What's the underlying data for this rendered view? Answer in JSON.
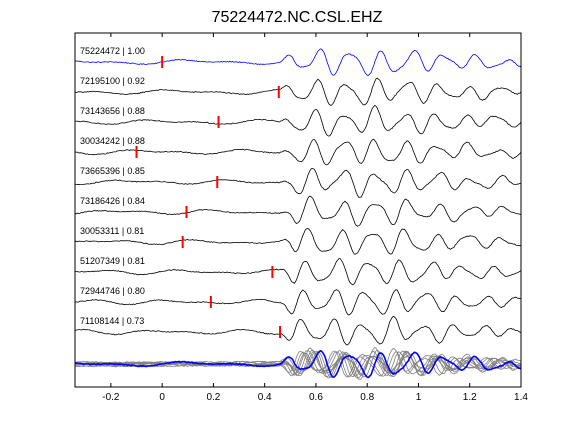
{
  "chart_data": {
    "type": "line",
    "title": "75224472.NC.CSL.EHZ",
    "xlabel": "",
    "ylabel": "",
    "xlim": [
      -0.34,
      1.4
    ],
    "x_ticks": [
      "-0.2",
      "0",
      "0.2",
      "0.4",
      "0.6",
      "0.8",
      "1",
      "1.2",
      "1.4"
    ],
    "x_tick_values": [
      -0.2,
      0,
      0.2,
      0.4,
      0.6,
      0.8,
      1.0,
      1.2,
      1.4
    ],
    "grid": false,
    "series": [
      {
        "name": "75224472 | 1.00",
        "pick_time": 0.0,
        "color": "#0000ff"
      },
      {
        "name": "72195100 | 0.92",
        "pick_time": 0.455,
        "color": "#000000"
      },
      {
        "name": "73143656 | 0.88",
        "pick_time": 0.22,
        "color": "#000000"
      },
      {
        "name": "30034242 | 0.88",
        "pick_time": -0.1,
        "color": "#000000"
      },
      {
        "name": "73665396 | 0.85",
        "pick_time": 0.215,
        "color": "#000000"
      },
      {
        "name": "73186426 | 0.84",
        "pick_time": 0.095,
        "color": "#000000"
      },
      {
        "name": "30053311 | 0.81",
        "pick_time": 0.08,
        "color": "#000000"
      },
      {
        "name": "51207349 | 0.81",
        "pick_time": 0.43,
        "color": "#000000"
      },
      {
        "name": "72944746 | 0.80",
        "pick_time": 0.19,
        "color": "#000000"
      },
      {
        "name": "71108144 | 0.73",
        "pick_time": 0.46,
        "color": "#000000"
      }
    ],
    "stack": {
      "overlay_color": "#808080",
      "reference_color": "#0000ff"
    },
    "pick_color": "#ff0000"
  }
}
